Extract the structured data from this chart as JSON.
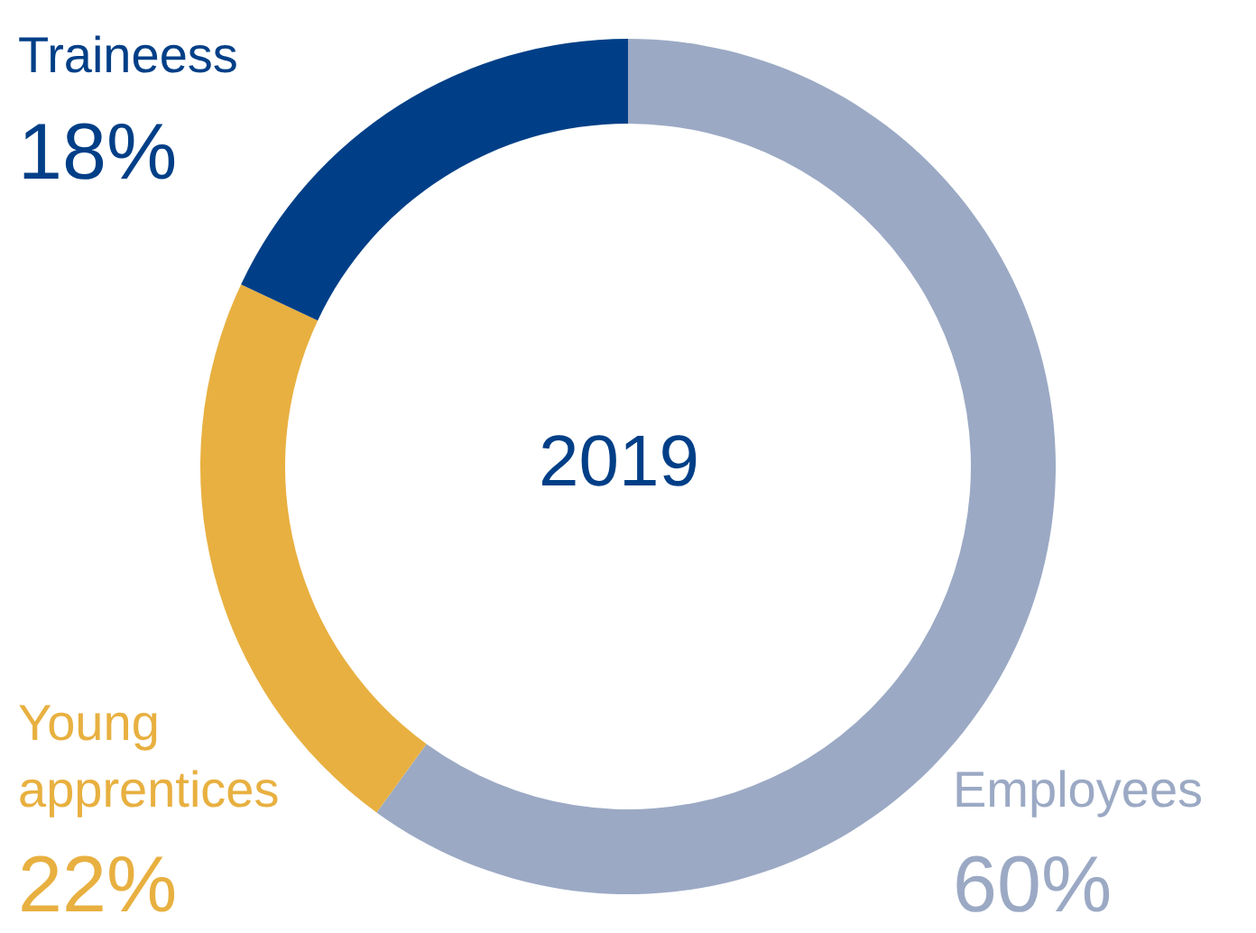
{
  "chart_data": {
    "type": "donut",
    "title": "2019",
    "categories": [
      "Employees",
      "Young apprentices",
      "Traineess"
    ],
    "values": [
      60,
      22,
      18
    ],
    "value_labels": [
      "60%",
      "22%",
      "18%"
    ],
    "colors": [
      "#9ba9c4",
      "#e8b040",
      "#003f87"
    ]
  }
}
